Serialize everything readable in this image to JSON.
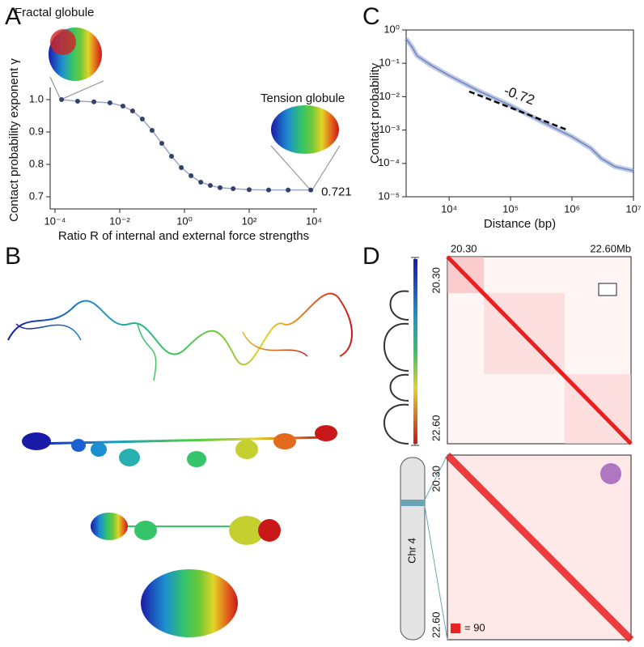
{
  "chart_data": [
    {
      "type": "scatter",
      "x_label": "Ratio R of internal and external force strengths",
      "y_label": "Contact probability exponent γ",
      "log_x": true,
      "color": "#34416b",
      "line_color": "#9aa6c4",
      "x": [
        0.00016,
        0.0005,
        0.0016,
        0.005,
        0.0126,
        0.025,
        0.05,
        0.1,
        0.2,
        0.4,
        0.8,
        1.6,
        3.2,
        6.3,
        12.6,
        32,
        100,
        400,
        1600,
        8000
      ],
      "values": [
        1.0,
        0.995,
        0.993,
        0.99,
        0.98,
        0.965,
        0.94,
        0.905,
        0.865,
        0.825,
        0.79,
        0.765,
        0.745,
        0.735,
        0.728,
        0.725,
        0.722,
        0.721,
        0.721,
        0.721
      ],
      "xlim": [
        7.1e-05,
        12600
      ],
      "ylim": [
        0.6625,
        1.0375
      ],
      "xticks": [
        {
          "value": 0.0001,
          "label": "10⁻⁴"
        },
        {
          "value": 0.01,
          "label": "10⁻²"
        },
        {
          "value": 1,
          "label": "10⁰"
        },
        {
          "value": 100,
          "label": "10²"
        },
        {
          "value": 10000,
          "label": "10⁴"
        }
      ],
      "yticks": [
        0.7,
        0.8,
        0.9,
        {
          "value": 1,
          "label": "1.0"
        }
      ],
      "annotations": [
        "Fractal globule",
        "Tension globule",
        "0.721"
      ]
    },
    {
      "type": "line",
      "x_label": "Distance (bp)",
      "y_label": "Contact probability",
      "log_x": true,
      "log_y": true,
      "color": "#6f86c0",
      "x": [
        2000,
        2500,
        3000,
        5000,
        10000,
        30000,
        100000,
        300000,
        1000000,
        2000000,
        3000000,
        5000000,
        10000000
      ],
      "values": [
        0.54,
        0.31,
        0.17,
        0.089,
        0.043,
        0.015,
        0.0054,
        0.0019,
        0.00063,
        0.00029,
        0.00014,
        8e-05,
        6e-05
      ],
      "xlim": [
        2000,
        10000000
      ],
      "ylim": [
        1e-05,
        1
      ],
      "xticks": [
        {
          "value": 10000,
          "label": "10⁴"
        },
        {
          "value": 100000,
          "label": "10⁵"
        },
        {
          "value": 1000000,
          "label": "10⁶"
        },
        {
          "value": 10000000,
          "label": "10⁷"
        }
      ],
      "yticks": [
        {
          "value": 1,
          "label": "10⁰"
        },
        {
          "value": 0.1,
          "label": "10⁻¹"
        },
        {
          "value": 0.01,
          "label": "10⁻²"
        },
        {
          "value": 0.001,
          "label": "10⁻³"
        },
        {
          "value": 0.0001,
          "label": "10⁻⁴"
        },
        {
          "value": 1e-05,
          "label": "10⁻⁵"
        }
      ],
      "annotation": "-0.72"
    }
  ],
  "panel_labels": [
    "A",
    "B",
    "C",
    "D"
  ],
  "hic": {
    "top_start": "20.30",
    "top_end": "22.60Mb",
    "side_start": "20.30",
    "side_end": "22.60",
    "bottom_side_start": "20.30",
    "bottom_side_end": "22.60",
    "chromosome": "Chr 4",
    "scale": "= 90"
  }
}
